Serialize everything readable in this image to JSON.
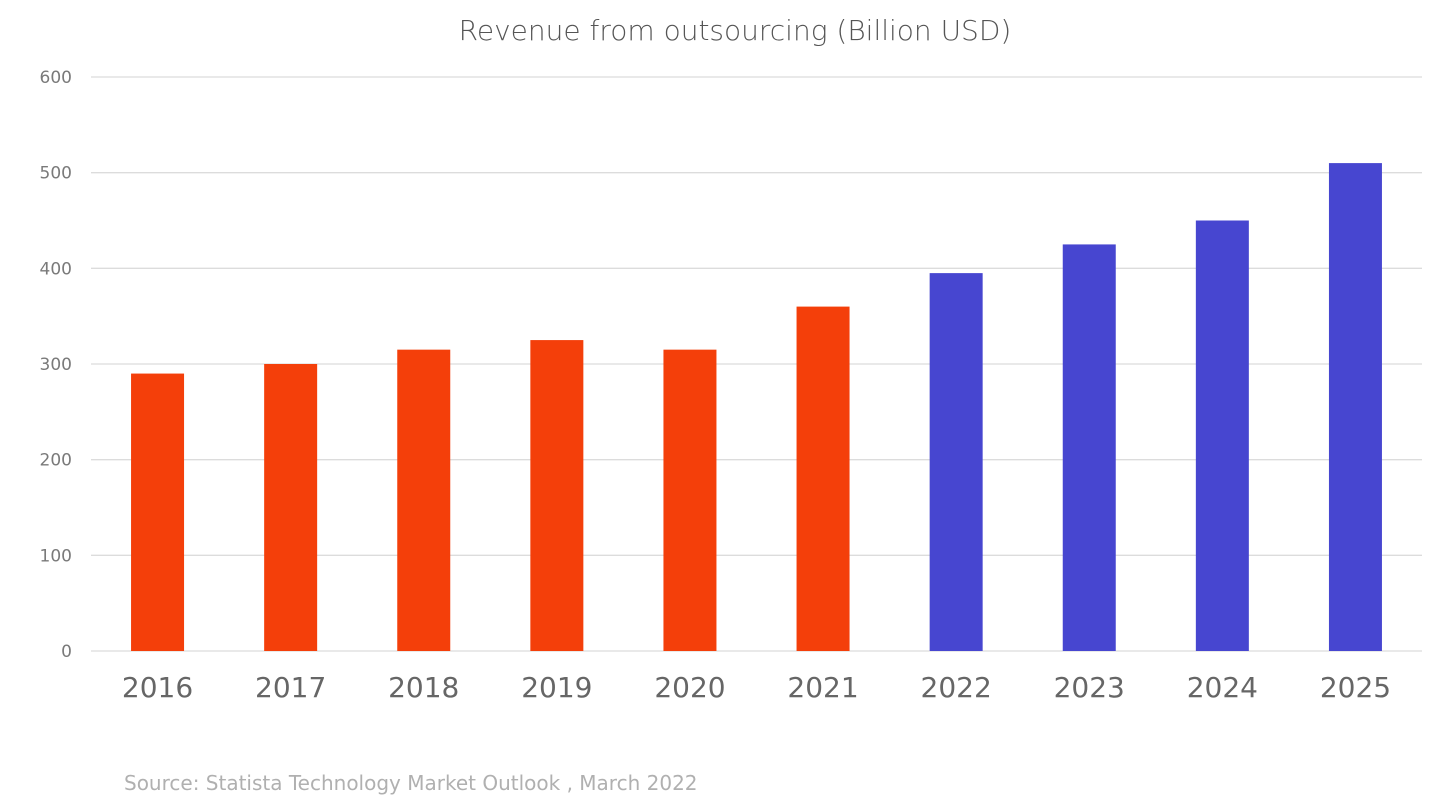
{
  "chart_data": {
    "type": "bar",
    "title": "Revenue from outsourcing (Billion USD)",
    "categories": [
      "2016",
      "2017",
      "2018",
      "2019",
      "2020",
      "2021",
      "2022",
      "2023",
      "2024",
      "2025"
    ],
    "values": [
      290,
      300,
      315,
      325,
      315,
      360,
      395,
      425,
      450,
      510
    ],
    "bar_colors": [
      "#f43f0a",
      "#f43f0a",
      "#f43f0a",
      "#f43f0a",
      "#f43f0a",
      "#f43f0a",
      "#4746d0",
      "#4746d0",
      "#4746d0",
      "#4746d0"
    ],
    "ylim": [
      0,
      600
    ],
    "yticks": [
      "0",
      "100",
      "200",
      "300",
      "400",
      "500",
      "600"
    ],
    "xlabel": "",
    "ylabel": "",
    "grid": true,
    "legend": "none"
  },
  "source": "Source: Statista Technology Market Outlook , March 2022"
}
